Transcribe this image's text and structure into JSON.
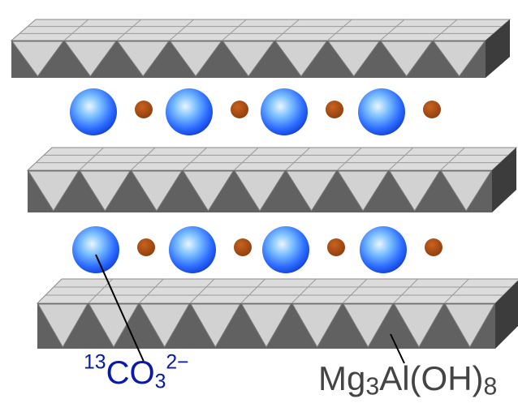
{
  "colors": {
    "anion": "#1f50ff",
    "anion_highlight": "#bfe7ff",
    "water": "#a3470f",
    "octahedron_top": "#dcdcdc",
    "octahedron_light": "#d2d2d2",
    "octahedron_dark": "#616161",
    "octahedron_shadow": "#3c3c3c",
    "label_anion": "#0a1aa8",
    "label_layer": "#444444"
  },
  "labels": {
    "anion": {
      "superscript": "13",
      "base": "CO",
      "subscript": "3",
      "charge": "2−"
    },
    "layer": {
      "a": "Mg",
      "sub1": "3",
      "b": "Al(OH)",
      "sub2": "8"
    }
  }
}
